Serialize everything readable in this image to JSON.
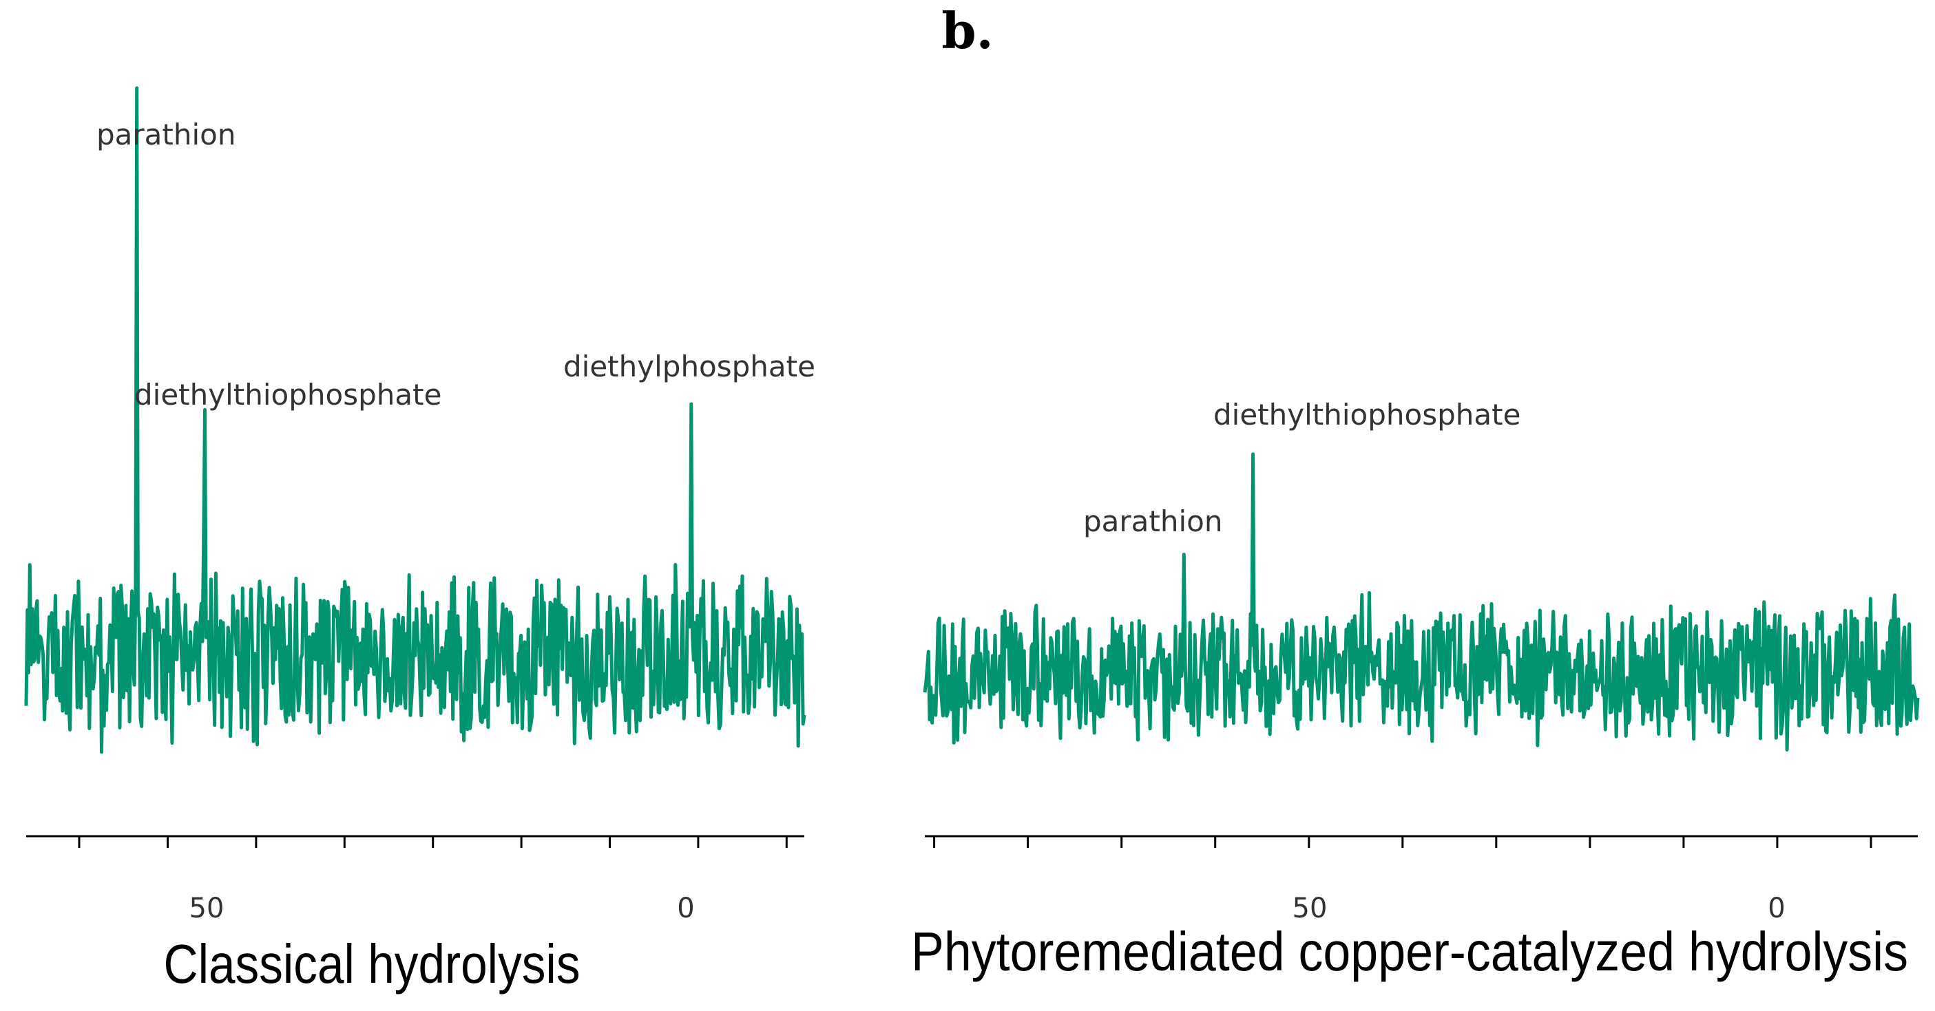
{
  "figure_label": "b.",
  "colors": {
    "trace": "#009470",
    "axis": "#000000"
  },
  "chart_data": [
    {
      "type": "line",
      "title": "",
      "caption": "Classical hydrolysis",
      "xlabel": "",
      "ylabel": "",
      "x_reversed": true,
      "xlim": [
        76,
        -12
      ],
      "ticks": [
        70,
        60,
        50,
        40,
        30,
        20,
        10,
        0,
        -10
      ],
      "tick_labels": [
        {
          "x": 50,
          "text": "50"
        },
        {
          "x": 0,
          "text": "0"
        }
      ],
      "peaks": [
        {
          "name": "parathion",
          "x": 63.5,
          "height": 1.0
        },
        {
          "name": "diethylthiophosphate",
          "x": 55.8,
          "height": 0.435
        },
        {
          "name": "diethylphosphate",
          "x": 0.8,
          "height": 0.445
        }
      ],
      "labels": [
        {
          "text": "parathion",
          "x": 63.5
        },
        {
          "text": "diethylthiophosphate",
          "x": 57.5
        },
        {
          "text": "diethylphosphate",
          "x": 1.0
        }
      ],
      "noise_amplitude": 0.17,
      "grid": false
    },
    {
      "type": "line",
      "title": "",
      "caption": "Phytoremediated copper-catalyzed hydrolysis",
      "xlabel": "",
      "ylabel": "",
      "x_reversed": true,
      "xlim": [
        91,
        -15
      ],
      "ticks": [
        90,
        80,
        70,
        60,
        50,
        40,
        30,
        20,
        10,
        0,
        -10
      ],
      "tick_labels": [
        {
          "x": 50,
          "text": "50"
        },
        {
          "x": 0,
          "text": "0"
        }
      ],
      "peaks": [
        {
          "name": "parathion",
          "x": 63.3,
          "height": 0.2
        },
        {
          "name": "diethylthiophosphate",
          "x": 56.0,
          "height": 0.372
        }
      ],
      "labels": [
        {
          "text": "parathion",
          "x": 63.5
        },
        {
          "text": "diethylthiophosphate",
          "x": 56.5
        }
      ],
      "noise_amplitude": 0.13,
      "grid": false
    }
  ]
}
